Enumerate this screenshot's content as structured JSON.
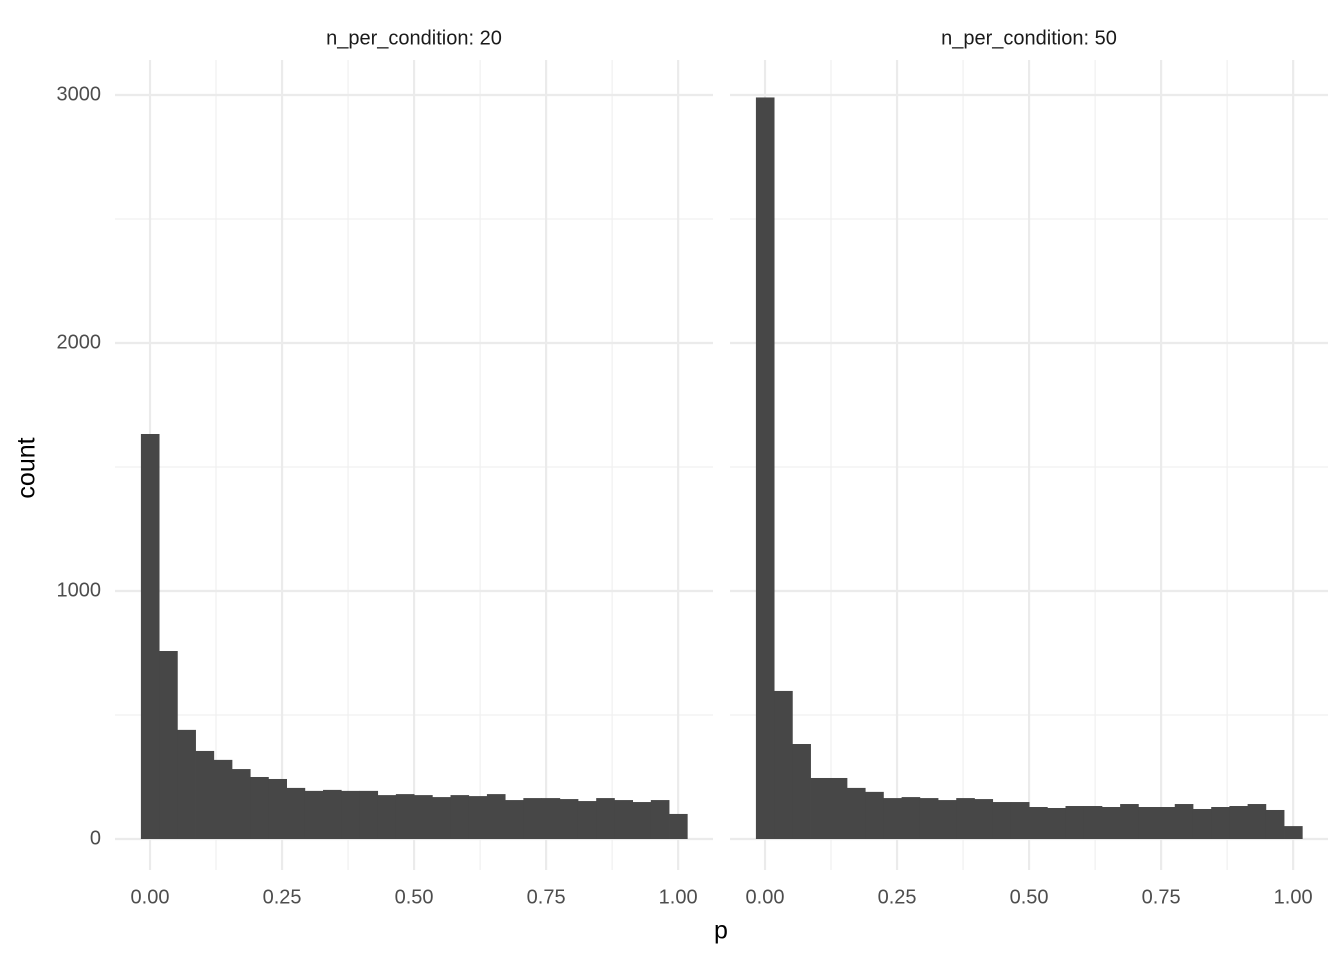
{
  "x_label": "p",
  "y_label": "count",
  "chart_data": [
    {
      "type": "histogram",
      "title": "n_per_condition: 20",
      "color": "#474747",
      "grid": true,
      "bins": [
        -0.01724,
        0.01724,
        0.05172,
        0.08621,
        0.12069,
        0.15517,
        0.18966,
        0.22414,
        0.25862,
        0.2931,
        0.32759,
        0.36207,
        0.39655,
        0.43103,
        0.46552,
        0.5,
        0.53448,
        0.56897,
        0.60345,
        0.63793,
        0.67241,
        0.7069,
        0.74138,
        0.77586,
        0.81034,
        0.84483,
        0.87931,
        0.91379,
        0.94828,
        0.98276,
        1.01724
      ],
      "values": [
        1633,
        758,
        440,
        355,
        319,
        282,
        250,
        242,
        206,
        194,
        198,
        194,
        194,
        177,
        181,
        177,
        169,
        177,
        173,
        181,
        157,
        165,
        165,
        161,
        153,
        165,
        157,
        149,
        157,
        101
      ],
      "xlim": [
        -0.0663,
        1.066
      ],
      "ylim": [
        -125,
        3141
      ],
      "xticks": [
        {
          "value": 0,
          "label": "0.00"
        },
        {
          "value": 0.25,
          "label": "0.25"
        },
        {
          "value": 0.5,
          "label": "0.50"
        },
        {
          "value": 0.75,
          "label": "0.75"
        },
        {
          "value": 1,
          "label": "1.00"
        }
      ],
      "yticks": [
        0,
        1000,
        2000,
        3000
      ]
    },
    {
      "type": "histogram",
      "title": "n_per_condition: 50",
      "color": "#474747",
      "grid": true,
      "bins": [
        -0.01724,
        0.01724,
        0.05172,
        0.08621,
        0.12069,
        0.15517,
        0.18966,
        0.22414,
        0.25862,
        0.2931,
        0.32759,
        0.36207,
        0.39655,
        0.43103,
        0.46552,
        0.5,
        0.53448,
        0.56897,
        0.60345,
        0.63793,
        0.67241,
        0.7069,
        0.74138,
        0.77586,
        0.81034,
        0.84483,
        0.87931,
        0.91379,
        0.94828,
        0.98276,
        1.01724
      ],
      "values": [
        2990,
        597,
        383,
        246,
        246,
        206,
        190,
        165,
        169,
        165,
        157,
        165,
        161,
        149,
        149,
        129,
        125,
        133,
        133,
        129,
        141,
        129,
        129,
        141,
        121,
        129,
        133,
        141,
        117,
        52
      ],
      "xlim": [
        -0.0663,
        1.066
      ],
      "ylim": [
        -125,
        3141
      ],
      "xticks": [
        {
          "value": 0,
          "label": "0.00"
        },
        {
          "value": 0.25,
          "label": "0.25"
        },
        {
          "value": 0.5,
          "label": "0.50"
        },
        {
          "value": 0.75,
          "label": "0.75"
        },
        {
          "value": 1,
          "label": "1.00"
        }
      ],
      "yticks": [
        0,
        1000,
        2000,
        3000
      ]
    }
  ]
}
